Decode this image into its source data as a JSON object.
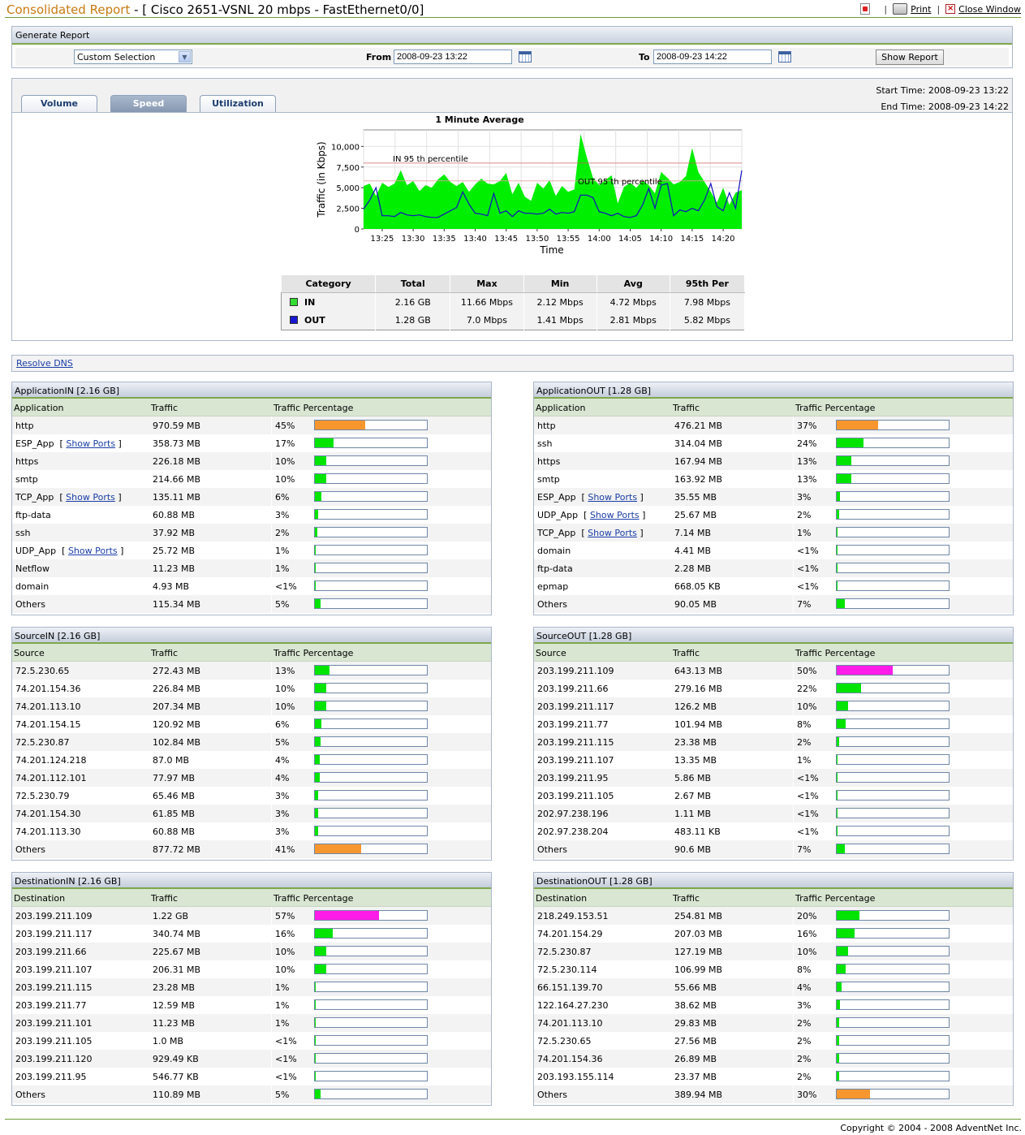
{
  "header": {
    "title_main": "Consolidated Report",
    "title_rest": " - [ Cisco 2651-VSNL 20 mbps - FastEthernet0/0]",
    "print_label": "Print",
    "close_label": "Close Window",
    "sep": "|"
  },
  "generate": {
    "title": "Generate Report",
    "selection": "Custom Selection",
    "from_label": "From",
    "from_value": "2008-09-23 13:22",
    "to_label": "To",
    "to_value": "2008-09-23 14:22",
    "show_button": "Show Report"
  },
  "graph": {
    "tabs": [
      "Volume",
      "Speed",
      "Utilization"
    ],
    "active_tab": 1,
    "start_time": "Start Time: 2008-09-23 13:22",
    "end_time": "End Time: 2008-09-23 14:22"
  },
  "chart_data": {
    "type": "area",
    "title": "1 Minute Average",
    "xlabel": "Time",
    "ylabel": "Traffic (in Kbps)",
    "ylim": [
      0,
      12000
    ],
    "yticks": [
      "10,000",
      "7,500",
      "5,000",
      "2,500",
      "0"
    ],
    "ytick_values": [
      10000,
      7500,
      5000,
      2500,
      0
    ],
    "xtick_labels": [
      "13:25",
      "13:30",
      "13:35",
      "13:40",
      "13:45",
      "13:50",
      "13:55",
      "14:00",
      "14:05",
      "14:10",
      "14:15",
      "14:20"
    ],
    "x_start_minute": 22,
    "series": [
      {
        "name": "IN",
        "color": "#00ee00",
        "values": [
          5200,
          5500,
          4000,
          5600,
          5100,
          5500,
          7100,
          5300,
          5800,
          4600,
          5300,
          5000,
          6000,
          6600,
          5700,
          5200,
          5700,
          4500,
          5400,
          6100,
          5500,
          5400,
          5800,
          6800,
          4200,
          5600,
          3900,
          3400,
          5600,
          4900,
          5900,
          4000,
          5200,
          4500,
          4800,
          11500,
          8700,
          6200,
          5300,
          5900,
          6500,
          3100,
          5100,
          5600,
          5000,
          5900,
          5300,
          4300,
          6900,
          6200,
          5400,
          5700,
          6400,
          9800,
          6900,
          5700,
          4500,
          3200,
          5000,
          2900,
          4400,
          4700
        ]
      },
      {
        "name": "OUT",
        "color": "#1010c0",
        "values": [
          2400,
          3500,
          5000,
          1600,
          1600,
          1500,
          2000,
          1700,
          1600,
          1700,
          1500,
          1400,
          1400,
          1800,
          2200,
          2600,
          4500,
          3000,
          1900,
          1800,
          1600,
          4300,
          1900,
          2200,
          1500,
          2200,
          1900,
          1900,
          1800,
          1900,
          2400,
          1800,
          2000,
          1900,
          2100,
          4100,
          4100,
          3800,
          2100,
          1900,
          1600,
          1900,
          1500,
          1400,
          1600,
          2900,
          4900,
          2500,
          5300,
          5500,
          1600,
          2300,
          2100,
          2500,
          2200,
          3500,
          5500,
          2700,
          2200,
          4400,
          2500,
          7100
        ]
      }
    ],
    "annotations": [
      {
        "text": "IN 95 th percentile",
        "value": 7980
      },
      {
        "text": "OUT 95 th percentile",
        "value": 5820
      }
    ]
  },
  "stats": {
    "headers": [
      "Category",
      "Total",
      "Max",
      "Min",
      "Avg",
      "95th Per"
    ],
    "rows": [
      {
        "category": "IN",
        "color": "#33dd33",
        "total": "2.16 GB",
        "max": "11.66 Mbps",
        "min": "2.12 Mbps",
        "avg": "4.72 Mbps",
        "p95": "7.98 Mbps"
      },
      {
        "category": "OUT",
        "color": "#1818d0",
        "total": "1.28 GB",
        "max": "7.0 Mbps",
        "min": "1.41 Mbps",
        "avg": "2.81 Mbps",
        "p95": "5.82 Mbps"
      }
    ]
  },
  "resolve_dns": "Resolve DNS",
  "show_ports_label": "Show Ports",
  "colors": {
    "green": "#00e400",
    "orange": "#f7962e",
    "magenta": "#ff1ce8"
  },
  "panels": [
    {
      "title": "ApplicationIN [2.16 GB]",
      "col1": "Application",
      "col2": "Traffic",
      "col3": "Traffic Percentage",
      "rows": [
        {
          "name": "http",
          "traffic": "970.59 MB",
          "pct": "45%",
          "fill": 45,
          "color": "orange",
          "ports": false
        },
        {
          "name": "ESP_App",
          "traffic": "358.73 MB",
          "pct": "17%",
          "fill": 17,
          "color": "green",
          "ports": true
        },
        {
          "name": "https",
          "traffic": "226.18 MB",
          "pct": "10%",
          "fill": 10,
          "color": "green",
          "ports": false
        },
        {
          "name": "smtp",
          "traffic": "214.66 MB",
          "pct": "10%",
          "fill": 10,
          "color": "green",
          "ports": false
        },
        {
          "name": "TCP_App",
          "traffic": "135.11 MB",
          "pct": "6%",
          "fill": 6,
          "color": "green",
          "ports": true
        },
        {
          "name": "ftp-data",
          "traffic": "60.88 MB",
          "pct": "3%",
          "fill": 3,
          "color": "green",
          "ports": false
        },
        {
          "name": "ssh",
          "traffic": "37.92 MB",
          "pct": "2%",
          "fill": 2,
          "color": "green",
          "ports": false
        },
        {
          "name": "UDP_App",
          "traffic": "25.72 MB",
          "pct": "1%",
          "fill": 1,
          "color": "green",
          "ports": true
        },
        {
          "name": "Netflow",
          "traffic": "11.23 MB",
          "pct": "1%",
          "fill": 1,
          "color": "green",
          "ports": false
        },
        {
          "name": "domain",
          "traffic": "4.93 MB",
          "pct": "<1%",
          "fill": 0.5,
          "color": "green",
          "ports": false
        },
        {
          "name": "Others",
          "traffic": "115.34 MB",
          "pct": "5%",
          "fill": 5,
          "color": "green",
          "ports": false
        }
      ]
    },
    {
      "title": "ApplicationOUT [1.28 GB]",
      "col1": "Application",
      "col2": "Traffic",
      "col3": "Traffic Percentage",
      "rows": [
        {
          "name": "http",
          "traffic": "476.21 MB",
          "pct": "37%",
          "fill": 37,
          "color": "orange",
          "ports": false
        },
        {
          "name": "ssh",
          "traffic": "314.04 MB",
          "pct": "24%",
          "fill": 24,
          "color": "green",
          "ports": false
        },
        {
          "name": "https",
          "traffic": "167.94 MB",
          "pct": "13%",
          "fill": 13,
          "color": "green",
          "ports": false
        },
        {
          "name": "smtp",
          "traffic": "163.92 MB",
          "pct": "13%",
          "fill": 13,
          "color": "green",
          "ports": false
        },
        {
          "name": "ESP_App",
          "traffic": "35.55 MB",
          "pct": "3%",
          "fill": 3,
          "color": "green",
          "ports": true
        },
        {
          "name": "UDP_App",
          "traffic": "25.67 MB",
          "pct": "2%",
          "fill": 2,
          "color": "green",
          "ports": true
        },
        {
          "name": "TCP_App",
          "traffic": "7.14 MB",
          "pct": "1%",
          "fill": 1,
          "color": "green",
          "ports": true
        },
        {
          "name": "domain",
          "traffic": "4.41 MB",
          "pct": "<1%",
          "fill": 0.5,
          "color": "green",
          "ports": false
        },
        {
          "name": "ftp-data",
          "traffic": "2.28 MB",
          "pct": "<1%",
          "fill": 0.5,
          "color": "green",
          "ports": false
        },
        {
          "name": "epmap",
          "traffic": "668.05 KB",
          "pct": "<1%",
          "fill": 0.5,
          "color": "green",
          "ports": false
        },
        {
          "name": "Others",
          "traffic": "90.05 MB",
          "pct": "7%",
          "fill": 7,
          "color": "green",
          "ports": false
        }
      ]
    },
    {
      "title": "SourceIN [2.16 GB]",
      "col1": "Source",
      "col2": "Traffic",
      "col3": "Traffic Percentage",
      "rows": [
        {
          "name": "72.5.230.65",
          "traffic": "272.43 MB",
          "pct": "13%",
          "fill": 13,
          "color": "green",
          "ports": false
        },
        {
          "name": "74.201.154.36",
          "traffic": "226.84 MB",
          "pct": "10%",
          "fill": 10,
          "color": "green",
          "ports": false
        },
        {
          "name": "74.201.113.10",
          "traffic": "207.34 MB",
          "pct": "10%",
          "fill": 10,
          "color": "green",
          "ports": false
        },
        {
          "name": "74.201.154.15",
          "traffic": "120.92 MB",
          "pct": "6%",
          "fill": 6,
          "color": "green",
          "ports": false
        },
        {
          "name": "72.5.230.87",
          "traffic": "102.84 MB",
          "pct": "5%",
          "fill": 5,
          "color": "green",
          "ports": false
        },
        {
          "name": "74.201.124.218",
          "traffic": "87.0 MB",
          "pct": "4%",
          "fill": 4,
          "color": "green",
          "ports": false
        },
        {
          "name": "74.201.112.101",
          "traffic": "77.97 MB",
          "pct": "4%",
          "fill": 4,
          "color": "green",
          "ports": false
        },
        {
          "name": "72.5.230.79",
          "traffic": "65.46 MB",
          "pct": "3%",
          "fill": 3,
          "color": "green",
          "ports": false
        },
        {
          "name": "74.201.154.30",
          "traffic": "61.85 MB",
          "pct": "3%",
          "fill": 3,
          "color": "green",
          "ports": false
        },
        {
          "name": "74.201.113.30",
          "traffic": "60.88 MB",
          "pct": "3%",
          "fill": 3,
          "color": "green",
          "ports": false
        },
        {
          "name": "Others",
          "traffic": "877.72 MB",
          "pct": "41%",
          "fill": 41,
          "color": "orange",
          "ports": false
        }
      ]
    },
    {
      "title": "SourceOUT [1.28 GB]",
      "col1": "Source",
      "col2": "Traffic",
      "col3": "Traffic Percentage",
      "rows": [
        {
          "name": "203.199.211.109",
          "traffic": "643.13 MB",
          "pct": "50%",
          "fill": 50,
          "color": "magenta",
          "ports": false
        },
        {
          "name": "203.199.211.66",
          "traffic": "279.16 MB",
          "pct": "22%",
          "fill": 22,
          "color": "green",
          "ports": false
        },
        {
          "name": "203.199.211.117",
          "traffic": "126.2 MB",
          "pct": "10%",
          "fill": 10,
          "color": "green",
          "ports": false
        },
        {
          "name": "203.199.211.77",
          "traffic": "101.94 MB",
          "pct": "8%",
          "fill": 8,
          "color": "green",
          "ports": false
        },
        {
          "name": "203.199.211.115",
          "traffic": "23.38 MB",
          "pct": "2%",
          "fill": 2,
          "color": "green",
          "ports": false
        },
        {
          "name": "203.199.211.107",
          "traffic": "13.35 MB",
          "pct": "1%",
          "fill": 1,
          "color": "green",
          "ports": false
        },
        {
          "name": "203.199.211.95",
          "traffic": "5.86 MB",
          "pct": "<1%",
          "fill": 0.5,
          "color": "green",
          "ports": false
        },
        {
          "name": "203.199.211.105",
          "traffic": "2.67 MB",
          "pct": "<1%",
          "fill": 0.5,
          "color": "green",
          "ports": false
        },
        {
          "name": "202.97.238.196",
          "traffic": "1.11 MB",
          "pct": "<1%",
          "fill": 0.5,
          "color": "green",
          "ports": false
        },
        {
          "name": "202.97.238.204",
          "traffic": "483.11 KB",
          "pct": "<1%",
          "fill": 0.5,
          "color": "green",
          "ports": false
        },
        {
          "name": "Others",
          "traffic": "90.6 MB",
          "pct": "7%",
          "fill": 7,
          "color": "green",
          "ports": false
        }
      ]
    },
    {
      "title": "DestinationIN [2.16 GB]",
      "col1": "Destination",
      "col2": "Traffic",
      "col3": "Traffic Percentage",
      "rows": [
        {
          "name": "203.199.211.109",
          "traffic": "1.22 GB",
          "pct": "57%",
          "fill": 57,
          "color": "magenta",
          "ports": false
        },
        {
          "name": "203.199.211.117",
          "traffic": "340.74 MB",
          "pct": "16%",
          "fill": 16,
          "color": "green",
          "ports": false
        },
        {
          "name": "203.199.211.66",
          "traffic": "225.67 MB",
          "pct": "10%",
          "fill": 10,
          "color": "green",
          "ports": false
        },
        {
          "name": "203.199.211.107",
          "traffic": "206.31 MB",
          "pct": "10%",
          "fill": 10,
          "color": "green",
          "ports": false
        },
        {
          "name": "203.199.211.115",
          "traffic": "23.28 MB",
          "pct": "1%",
          "fill": 1,
          "color": "green",
          "ports": false
        },
        {
          "name": "203.199.211.77",
          "traffic": "12.59 MB",
          "pct": "1%",
          "fill": 1,
          "color": "green",
          "ports": false
        },
        {
          "name": "203.199.211.101",
          "traffic": "11.23 MB",
          "pct": "1%",
          "fill": 1,
          "color": "green",
          "ports": false
        },
        {
          "name": "203.199.211.105",
          "traffic": "1.0 MB",
          "pct": "<1%",
          "fill": 0.5,
          "color": "green",
          "ports": false
        },
        {
          "name": "203.199.211.120",
          "traffic": "929.49 KB",
          "pct": "<1%",
          "fill": 0.5,
          "color": "green",
          "ports": false
        },
        {
          "name": "203.199.211.95",
          "traffic": "546.77 KB",
          "pct": "<1%",
          "fill": 0.5,
          "color": "green",
          "ports": false
        },
        {
          "name": "Others",
          "traffic": "110.89 MB",
          "pct": "5%",
          "fill": 5,
          "color": "green",
          "ports": false
        }
      ]
    },
    {
      "title": "DestinationOUT [1.28 GB]",
      "col1": "Destination",
      "col2": "Traffic",
      "col3": "Traffic Percentage",
      "rows": [
        {
          "name": "218.249.153.51",
          "traffic": "254.81 MB",
          "pct": "20%",
          "fill": 20,
          "color": "green",
          "ports": false
        },
        {
          "name": "74.201.154.29",
          "traffic": "207.03 MB",
          "pct": "16%",
          "fill": 16,
          "color": "green",
          "ports": false
        },
        {
          "name": "72.5.230.87",
          "traffic": "127.19 MB",
          "pct": "10%",
          "fill": 10,
          "color": "green",
          "ports": false
        },
        {
          "name": "72.5.230.114",
          "traffic": "106.99 MB",
          "pct": "8%",
          "fill": 8,
          "color": "green",
          "ports": false
        },
        {
          "name": "66.151.139.70",
          "traffic": "55.66 MB",
          "pct": "4%",
          "fill": 4,
          "color": "green",
          "ports": false
        },
        {
          "name": "122.164.27.230",
          "traffic": "38.62 MB",
          "pct": "3%",
          "fill": 3,
          "color": "green",
          "ports": false
        },
        {
          "name": "74.201.113.10",
          "traffic": "29.83 MB",
          "pct": "2%",
          "fill": 2,
          "color": "green",
          "ports": false
        },
        {
          "name": "72.5.230.65",
          "traffic": "27.56 MB",
          "pct": "2%",
          "fill": 2,
          "color": "green",
          "ports": false
        },
        {
          "name": "74.201.154.36",
          "traffic": "26.89 MB",
          "pct": "2%",
          "fill": 2,
          "color": "green",
          "ports": false
        },
        {
          "name": "203.193.155.114",
          "traffic": "23.37 MB",
          "pct": "2%",
          "fill": 2,
          "color": "green",
          "ports": false
        },
        {
          "name": "Others",
          "traffic": "389.94 MB",
          "pct": "30%",
          "fill": 30,
          "color": "orange",
          "ports": false
        }
      ]
    }
  ],
  "footer": "Copyright © 2004 - 2008 AdventNet Inc."
}
